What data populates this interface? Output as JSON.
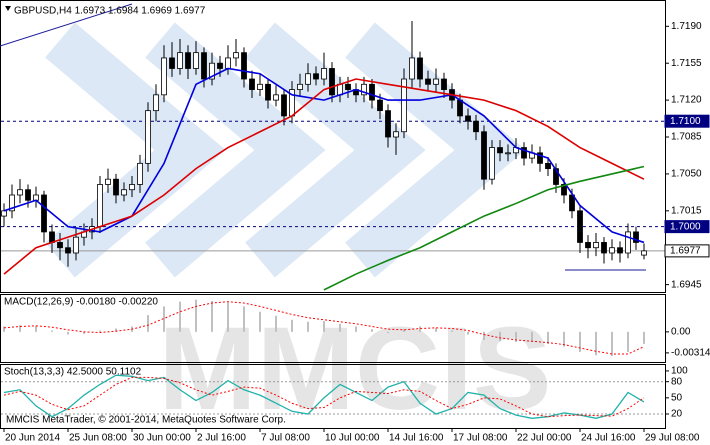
{
  "chart_data": [
    {
      "type": "candlestick",
      "title": "GBPUSD,H4  1.6973 1.6984 1.6969 1.6977",
      "ylim": [
        1.6938,
        1.7214
      ],
      "yticks": [
        1.6945,
        1.7015,
        {
          "value": 1.705,
          "label": "1.7050"
        },
        1.7085,
        {
          "value": 1.712,
          "label": "1.7120"
        },
        1.7155,
        {
          "value": 1.719,
          "label": "1.7190"
        }
      ],
      "up_color": "#ffffff",
      "down_color": "#000000",
      "ohlc": [
        [
          1.701,
          1.7022,
          1.7,
          1.7015
        ],
        [
          1.7015,
          1.704,
          1.7008,
          1.703
        ],
        [
          1.703,
          1.7045,
          1.7022,
          1.7035
        ],
        [
          1.7035,
          1.704,
          1.7018,
          1.7025
        ],
        [
          1.7025,
          1.7038,
          1.7018,
          1.703
        ],
        [
          1.703,
          1.7034,
          1.6985,
          1.6995
        ],
        [
          1.6995,
          1.7002,
          1.6975,
          1.6985
        ],
        [
          1.6985,
          1.6994,
          1.6968,
          1.698
        ],
        [
          1.698,
          1.6988,
          1.6962,
          1.6975
        ],
        [
          1.6975,
          1.6998,
          1.6968,
          1.699
        ],
        [
          1.699,
          1.7003,
          1.6982,
          1.6995
        ],
        [
          1.6995,
          1.7008,
          1.6988,
          1.7
        ],
        [
          1.7,
          1.7048,
          1.6994,
          1.704
        ],
        [
          1.704,
          1.7055,
          1.7032,
          1.7045
        ],
        [
          1.7045,
          1.705,
          1.7022,
          1.703
        ],
        [
          1.703,
          1.7042,
          1.7024,
          1.7035
        ],
        [
          1.7035,
          1.7048,
          1.7028,
          1.704
        ],
        [
          1.704,
          1.7068,
          1.7032,
          1.706
        ],
        [
          1.706,
          1.7118,
          1.7052,
          1.711
        ],
        [
          1.711,
          1.7135,
          1.71,
          1.7125
        ],
        [
          1.7125,
          1.7172,
          1.7118,
          1.716
        ],
        [
          1.716,
          1.7175,
          1.7142,
          1.715
        ],
        [
          1.715,
          1.7178,
          1.7144,
          1.7165
        ],
        [
          1.7165,
          1.7172,
          1.714,
          1.715
        ],
        [
          1.715,
          1.7176,
          1.7144,
          1.7165
        ],
        [
          1.7165,
          1.717,
          1.7132,
          1.714
        ],
        [
          1.714,
          1.7165,
          1.7134,
          1.7155
        ],
        [
          1.7155,
          1.7162,
          1.7142,
          1.715
        ],
        [
          1.715,
          1.7172,
          1.7144,
          1.716
        ],
        [
          1.716,
          1.7178,
          1.7152,
          1.7165
        ],
        [
          1.7165,
          1.717,
          1.7132,
          1.714
        ],
        [
          1.714,
          1.7148,
          1.7122,
          1.713
        ],
        [
          1.713,
          1.7145,
          1.7124,
          1.7135
        ],
        [
          1.7135,
          1.714,
          1.7112,
          1.712
        ],
        [
          1.712,
          1.7134,
          1.7114,
          1.7125
        ],
        [
          1.7125,
          1.713,
          1.7096,
          1.7105
        ],
        [
          1.7105,
          1.7138,
          1.7098,
          1.713
        ],
        [
          1.713,
          1.7145,
          1.7124,
          1.7135
        ],
        [
          1.7135,
          1.7155,
          1.7128,
          1.7145
        ],
        [
          1.7145,
          1.7152,
          1.7134,
          1.714
        ],
        [
          1.714,
          1.7165,
          1.7134,
          1.715
        ],
        [
          1.715,
          1.7156,
          1.7118,
          1.7125
        ],
        [
          1.7125,
          1.7142,
          1.7118,
          1.7135
        ],
        [
          1.7135,
          1.7142,
          1.7122,
          1.713
        ],
        [
          1.713,
          1.7136,
          1.7118,
          1.7125
        ],
        [
          1.7125,
          1.7142,
          1.7118,
          1.7135
        ],
        [
          1.7135,
          1.714,
          1.7112,
          1.712
        ],
        [
          1.712,
          1.7126,
          1.7102,
          1.711
        ],
        [
          1.711,
          1.7116,
          1.7075,
          1.7085
        ],
        [
          1.7085,
          1.7098,
          1.7068,
          1.709
        ],
        [
          1.709,
          1.715,
          1.7084,
          1.714
        ],
        [
          1.714,
          1.7195,
          1.7132,
          1.716
        ],
        [
          1.716,
          1.7166,
          1.7132,
          1.714
        ],
        [
          1.714,
          1.7148,
          1.7128,
          1.7135
        ],
        [
          1.7135,
          1.715,
          1.7128,
          1.714
        ],
        [
          1.714,
          1.7146,
          1.7122,
          1.713
        ],
        [
          1.713,
          1.7136,
          1.7112,
          1.712
        ],
        [
          1.712,
          1.7126,
          1.7098,
          1.7105
        ],
        [
          1.7105,
          1.7112,
          1.7092,
          1.71
        ],
        [
          1.71,
          1.7106,
          1.7082,
          1.709
        ],
        [
          1.709,
          1.7096,
          1.7035,
          1.7045
        ],
        [
          1.7045,
          1.7082,
          1.704,
          1.7075
        ],
        [
          1.7075,
          1.7082,
          1.7062,
          1.707
        ],
        [
          1.707,
          1.7078,
          1.7062,
          1.707
        ],
        [
          1.707,
          1.7084,
          1.7064,
          1.7075
        ],
        [
          1.7075,
          1.708,
          1.7058,
          1.7065
        ],
        [
          1.7065,
          1.7078,
          1.706,
          1.707
        ],
        [
          1.707,
          1.7076,
          1.7052,
          1.706
        ],
        [
          1.706,
          1.7066,
          1.7048,
          1.7055
        ],
        [
          1.7055,
          1.706,
          1.7032,
          1.704
        ],
        [
          1.704,
          1.7046,
          1.7022,
          1.703
        ],
        [
          1.703,
          1.7036,
          1.7008,
          1.7015
        ],
        [
          1.7015,
          1.702,
          1.6975,
          1.6985
        ],
        [
          1.6985,
          1.6992,
          1.697,
          1.698
        ],
        [
          1.698,
          1.6994,
          1.6972,
          1.6985
        ],
        [
          1.6985,
          1.699,
          1.6965,
          1.6975
        ],
        [
          1.6975,
          1.6988,
          1.6968,
          1.698
        ],
        [
          1.698,
          1.6986,
          1.6966,
          1.6975
        ],
        [
          1.6975,
          1.7003,
          1.697,
          1.6995
        ],
        [
          1.6995,
          1.7,
          1.6978,
          1.6985
        ],
        [
          1.6973,
          1.6984,
          1.6969,
          1.6977
        ]
      ],
      "lines": [
        {
          "color": "#0000dd",
          "x": [
            0,
            4,
            8,
            12,
            16,
            20,
            24,
            28,
            32,
            36,
            40,
            44,
            48,
            52,
            56,
            60,
            64,
            68,
            72,
            76,
            80
          ],
          "values": [
            1.7015,
            1.7025,
            1.7,
            1.6995,
            1.701,
            1.706,
            1.7135,
            1.715,
            1.7145,
            1.7125,
            1.712,
            1.713,
            1.712,
            1.712,
            1.7125,
            1.7105,
            1.7075,
            1.7065,
            1.702,
            1.6995,
            1.6985
          ]
        },
        {
          "color": "#dd0000",
          "x": [
            0,
            4,
            8,
            12,
            16,
            20,
            24,
            28,
            32,
            36,
            40,
            44,
            48,
            52,
            56,
            60,
            64,
            68,
            72,
            76,
            80
          ],
          "values": [
            1.6955,
            1.698,
            1.699,
            1.7,
            1.701,
            1.703,
            1.7055,
            1.7075,
            1.709,
            1.7105,
            1.713,
            1.714,
            1.7135,
            1.713,
            1.7125,
            1.712,
            1.711,
            1.7095,
            1.7075,
            1.706,
            1.7045
          ]
        },
        {
          "color": "#118811",
          "x": [
            40,
            44,
            48,
            52,
            56,
            60,
            64,
            68,
            72,
            76,
            80
          ],
          "values": [
            1.694,
            1.6955,
            1.6968,
            1.698,
            1.6995,
            1.701,
            1.7022,
            1.7035,
            1.7043,
            1.705,
            1.7057
          ]
        }
      ],
      "hlines": [
        {
          "value": 1.71,
          "label": "1.7100",
          "color": "#000080",
          "dashed": true
        },
        {
          "value": 1.7,
          "label": "1.7000",
          "color": "#000080",
          "dashed": true
        },
        {
          "value": 1.6977,
          "label": "1.6977",
          "color": "#999999",
          "dashed": false
        }
      ]
    },
    {
      "type": "macd",
      "title": "MACD(12,26,9) -0.00180 -0.00220",
      "ylim": [
        -0.0045,
        0.0055
      ],
      "yticks": [
        {
          "value": 0,
          "label": "0.00"
        },
        -0.00314
      ],
      "x": [
        0,
        2,
        4,
        6,
        8,
        10,
        12,
        14,
        16,
        18,
        20,
        22,
        24,
        26,
        28,
        30,
        32,
        34,
        36,
        38,
        40,
        42,
        44,
        46,
        48,
        50,
        52,
        54,
        56,
        58,
        60,
        62,
        64,
        66,
        68,
        70,
        72,
        74,
        76,
        78,
        80
      ],
      "series": [
        {
          "color": "#c0c0c0",
          "style": "histogram",
          "values": [
            0.0008,
            0.001,
            0.0009,
            0.0002,
            -0.0004,
            -0.0003,
            0.0002,
            0.0005,
            0.0008,
            0.0025,
            0.0038,
            0.0045,
            0.0048,
            0.0046,
            0.0044,
            0.0038,
            0.003,
            0.0024,
            0.0018,
            0.0015,
            0.0016,
            0.0012,
            0.0008,
            0.0004,
            -0.0002,
            0.0004,
            0.0008,
            0.0006,
            0.0002,
            -0.0004,
            -0.0012,
            -0.0014,
            -0.0015,
            -0.0015,
            -0.0018,
            -0.0022,
            -0.003,
            -0.0035,
            -0.0036,
            -0.003,
            -0.0018
          ]
        },
        {
          "color": "#ff0000",
          "style": "dotted",
          "values": [
            0.0006,
            0.0008,
            0.0009,
            0.0007,
            0.0003,
            0.0,
            -0.0001,
            0.0001,
            0.0004,
            0.001,
            0.002,
            0.003,
            0.0038,
            0.0043,
            0.0045,
            0.0043,
            0.0038,
            0.0032,
            0.0026,
            0.0021,
            0.0018,
            0.0015,
            0.0012,
            0.0008,
            0.0004,
            0.0003,
            0.0005,
            0.0006,
            0.0005,
            0.0002,
            -0.0004,
            -0.0009,
            -0.0012,
            -0.0014,
            -0.0016,
            -0.0019,
            -0.0024,
            -0.0029,
            -0.0033,
            -0.0033,
            -0.0022
          ]
        }
      ]
    },
    {
      "type": "stoch",
      "title": "Stoch(13,3,3) 42.5000 50.1102",
      "ylim": [
        -6,
        111
      ],
      "yticks": [
        100,
        80,
        50,
        20
      ],
      "levels": [
        80,
        20
      ],
      "x": [
        0,
        2,
        4,
        6,
        8,
        10,
        12,
        14,
        16,
        18,
        20,
        22,
        24,
        26,
        28,
        30,
        32,
        34,
        36,
        38,
        40,
        42,
        44,
        46,
        48,
        50,
        52,
        54,
        56,
        58,
        60,
        62,
        64,
        66,
        68,
        70,
        72,
        74,
        76,
        78,
        80
      ],
      "series": [
        {
          "color": "#20b2aa",
          "style": "solid",
          "values": [
            60,
            65,
            35,
            15,
            30,
            55,
            75,
            92,
            90,
            82,
            88,
            65,
            45,
            60,
            82,
            65,
            55,
            40,
            25,
            20,
            50,
            75,
            60,
            45,
            70,
            80,
            40,
            20,
            30,
            60,
            55,
            30,
            18,
            12,
            15,
            22,
            18,
            12,
            20,
            60,
            42.5
          ]
        },
        {
          "color": "#ff0000",
          "style": "dotted",
          "values": [
            55,
            62,
            55,
            38,
            28,
            35,
            55,
            75,
            88,
            88,
            86,
            78,
            65,
            55,
            62,
            70,
            68,
            55,
            40,
            30,
            32,
            50,
            62,
            60,
            58,
            65,
            62,
            45,
            30,
            38,
            50,
            48,
            35,
            20,
            15,
            17,
            18,
            17,
            16,
            30,
            50.1102
          ]
        }
      ],
      "xticks": [
        {
          "value": 0,
          "label": "20 Jun 2014"
        },
        {
          "value": 8,
          "label": "25 Jun 08:00"
        },
        {
          "value": 16,
          "label": "30 Jun 00:00"
        },
        {
          "value": 24,
          "label": "2 Jul 16:00"
        },
        {
          "value": 32,
          "label": "7 Jul 08:00"
        },
        {
          "value": 40,
          "label": "10 Jul 00:00"
        },
        {
          "value": 48,
          "label": "14 Jul 16:00"
        },
        {
          "value": 56,
          "label": "17 Jul 08:00"
        },
        {
          "value": 64,
          "label": "22 Jul 00:00"
        },
        {
          "value": 72,
          "label": "24 Jul 16:00"
        },
        {
          "value": 80,
          "label": "29 Jul 08:00"
        }
      ]
    }
  ],
  "watermark": "MMCIS",
  "footer": "MMCIS MetaTrader, © 2001-2014, MetaQuotes Software Corp."
}
